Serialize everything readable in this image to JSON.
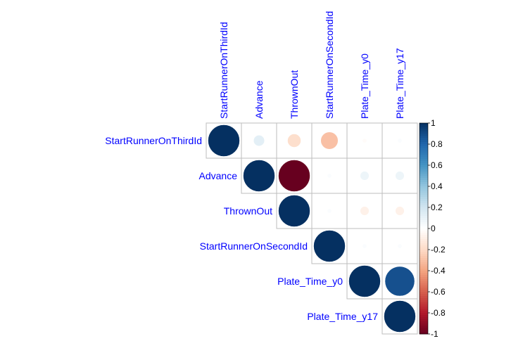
{
  "chart_data": {
    "type": "heatmap",
    "style": "corrplot-circle-upper",
    "variables": [
      "StartRunnerOnThirdId",
      "Advance",
      "ThrownOut",
      "StartRunnerOnSecondId",
      "Plate_Time_y0",
      "Plate_Time_y17"
    ],
    "col_labels": [
      "StartRunnerOnThirdId",
      "Advance",
      "ThrownOut",
      "StartRunnerOnSecondId",
      "Plate_Time_y0",
      "Plate_Time_y17"
    ],
    "row_labels": [
      "StartRunnerOnThirdId",
      "Advance",
      "ThrownOut",
      "StartRunnerOnSecondId",
      "Plate_Time_y0",
      "Plate_Time_y17"
    ],
    "matrix": [
      [
        1.0,
        0.12,
        -0.18,
        -0.3,
        -0.02,
        0.02
      ],
      [
        null,
        1.0,
        -1.0,
        0.02,
        0.08,
        0.08
      ],
      [
        null,
        null,
        1.0,
        0.02,
        -0.08,
        -0.08
      ],
      [
        null,
        null,
        null,
        1.0,
        0.02,
        0.02
      ],
      [
        null,
        null,
        null,
        null,
        1.0,
        0.88
      ],
      [
        null,
        null,
        null,
        null,
        null,
        1.0
      ]
    ],
    "colorbar": {
      "range": [
        -1,
        1
      ],
      "ticks": [
        1,
        0.8,
        0.6,
        0.4,
        0.2,
        0,
        -0.2,
        -0.4,
        -0.6,
        -0.8,
        -1
      ],
      "tick_labels": [
        "1",
        "0.8",
        "0.6",
        "0.4",
        "0.2",
        "0",
        "-0.2",
        "-0.4",
        "-0.6",
        "-0.8",
        "-1"
      ],
      "colors": [
        "#67001F",
        "#B2182B",
        "#D6604D",
        "#F4A582",
        "#FDDBC7",
        "#FFFFFF",
        "#D1E5F0",
        "#92C5DE",
        "#4393C3",
        "#2166AC",
        "#053061"
      ]
    },
    "label_color": "#0000FF",
    "grid_color": "#BEBEBE"
  }
}
